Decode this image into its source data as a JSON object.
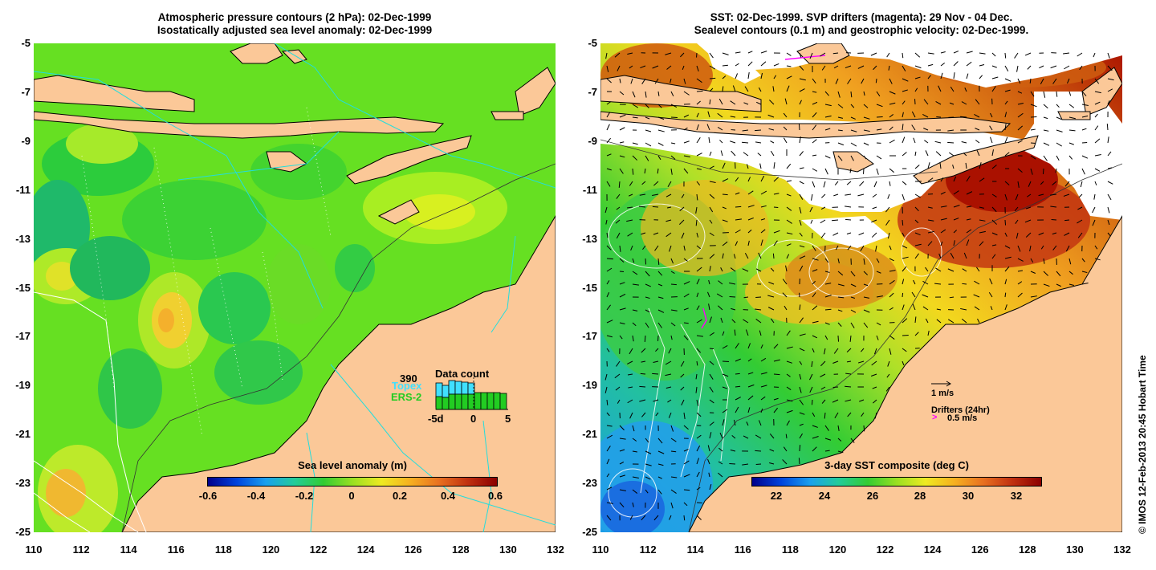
{
  "left_panel": {
    "title_line1": "Atmospheric pressure contours (2 hPa): 02-Dec-1999",
    "title_line2": "Isostatically adjusted sea level anomaly: 02-Dec-1999",
    "colorbar": {
      "title": "Sea level anomaly (m)",
      "ticks": [
        "-0.6",
        "-0.4",
        "-0.2",
        "0",
        "0.2",
        "0.4",
        "0.6"
      ],
      "range": [
        -0.6,
        0.6
      ]
    },
    "data_count": {
      "title": "Data count",
      "count": "390",
      "topex_label": "Topex",
      "ers_label": "ERS-2",
      "axis_ticks": [
        "-5d",
        "0",
        "5"
      ],
      "topex_color": "#40e0ff",
      "ers_color": "#22cc22"
    }
  },
  "right_panel": {
    "title_line1": "SST: 02-Dec-1999. SVP drifters (magenta): 29 Nov - 04 Dec.",
    "title_line2": "Sealevel contours (0.1 m) and geostrophic velocity: 02-Dec-1999.",
    "colorbar": {
      "title": "3-day SST composite (deg C)",
      "ticks": [
        "22",
        "24",
        "26",
        "28",
        "30",
        "32"
      ],
      "range": [
        21,
        33
      ]
    },
    "velocity_scale_label": "1 m/s",
    "drifters_label": "Drifters (24hr)",
    "drifters_scale_label": "0.5 m/s",
    "drifter_color": "#ff00ff"
  },
  "axes": {
    "y_ticks": [
      "-5",
      "-7",
      "-9",
      "-11",
      "-13",
      "-15",
      "-17",
      "-19",
      "-21",
      "-23",
      "-25"
    ],
    "x_ticks": [
      "110",
      "112",
      "114",
      "116",
      "118",
      "120",
      "122",
      "124",
      "126",
      "128",
      "130",
      "132"
    ],
    "lon_range": [
      110,
      132
    ],
    "lat_range": [
      -25,
      -5
    ]
  },
  "colors": {
    "land": "#fbc898",
    "sla_background": "#55dd22",
    "sst_warm": "#d06010",
    "sst_hot": "#aa1100",
    "cloud": "#ffffff",
    "ground_track": "#22dddd"
  },
  "copyright": "© IMOS 12-Feb-2013 20:45 Hobart Time"
}
